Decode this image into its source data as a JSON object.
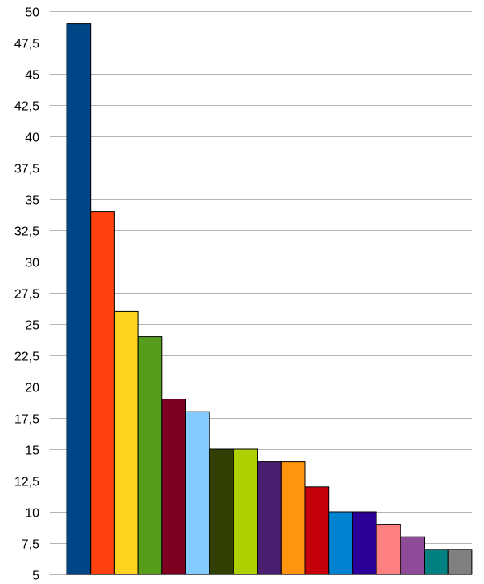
{
  "chart_data": {
    "type": "bar",
    "title": "",
    "xlabel": "",
    "ylabel": "",
    "ylim": [
      5,
      50
    ],
    "yticks": [
      "5",
      "7,5",
      "10",
      "12,5",
      "15",
      "17,5",
      "20",
      "22,5",
      "25",
      "27,5",
      "30",
      "32,5",
      "35",
      "37,5",
      "40",
      "42,5",
      "45",
      "47,5",
      "50"
    ],
    "ytick_step": 2.5,
    "grid": true,
    "legend": "none",
    "values": [
      49,
      34,
      26,
      24,
      19,
      18,
      15,
      15,
      14,
      14,
      12,
      10,
      10,
      9,
      8,
      7,
      7
    ],
    "colors": [
      "#004586",
      "#ff420e",
      "#ffd320",
      "#579d1c",
      "#7e0021",
      "#83caff",
      "#314004",
      "#aecf00",
      "#4b1f6f",
      "#ff950e",
      "#c5000b",
      "#0084d1",
      "#2a0099",
      "#ff8080",
      "#8e4b97",
      "#008080",
      "#808080"
    ]
  }
}
